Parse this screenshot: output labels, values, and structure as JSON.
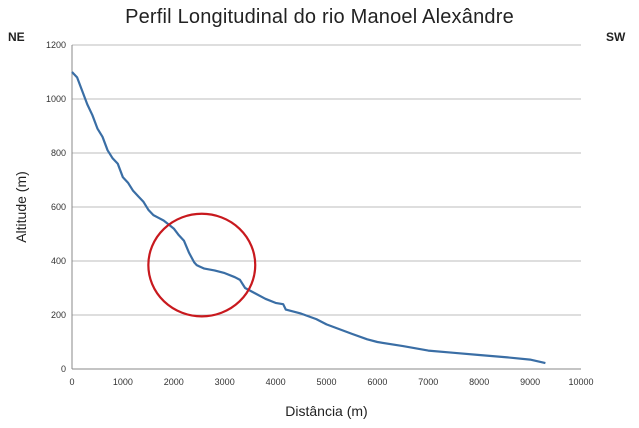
{
  "chart_data": {
    "type": "line",
    "title": "Perfil Longitudinal do rio Manoel Alexândre",
    "xlabel": "Distância (m)",
    "ylabel": "Altitude (m)",
    "left_label": "NE",
    "right_label": "SW",
    "xlim": [
      0,
      10000
    ],
    "ylim": [
      0,
      1200
    ],
    "x_ticks": [
      "0",
      "1000",
      "2000",
      "3000",
      "4000",
      "5000",
      "6000",
      "7000",
      "8000",
      "9000",
      "10000"
    ],
    "y_ticks": [
      "0",
      "200",
      "400",
      "600",
      "800",
      "1000",
      "1200"
    ],
    "grid": "horizontal",
    "colors": {
      "line": "#3a6ea5",
      "highlight": "#c8191e",
      "grid": "#bcbcbc",
      "axis": "#888888"
    },
    "series": [
      {
        "x": [
          0,
          100,
          200,
          300,
          400,
          500,
          600,
          700,
          800,
          900,
          1000,
          1100,
          1200,
          1300,
          1400,
          1500,
          1600,
          1700,
          1800,
          1900,
          2000,
          2100,
          2200,
          2300,
          2400,
          2450,
          2500,
          2600,
          2800,
          3000,
          3200,
          3300,
          3400,
          3600,
          3800,
          4000,
          4150,
          4200,
          4500,
          4800,
          5000,
          5500,
          5800,
          6000,
          6500,
          7000,
          7500,
          8000,
          8500,
          9000,
          9300
        ],
        "y": [
          1100,
          1080,
          1030,
          980,
          940,
          890,
          860,
          810,
          780,
          760,
          710,
          690,
          660,
          640,
          620,
          590,
          570,
          560,
          550,
          535,
          520,
          495,
          475,
          430,
          395,
          385,
          380,
          372,
          365,
          355,
          340,
          330,
          300,
          280,
          260,
          245,
          240,
          220,
          205,
          185,
          165,
          130,
          110,
          100,
          85,
          68,
          60,
          52,
          44,
          35,
          22
        ]
      }
    ],
    "highlight_circle": {
      "center_x": 2550,
      "center_y": 385,
      "radius_x": 1050,
      "radius_y": 190
    }
  }
}
